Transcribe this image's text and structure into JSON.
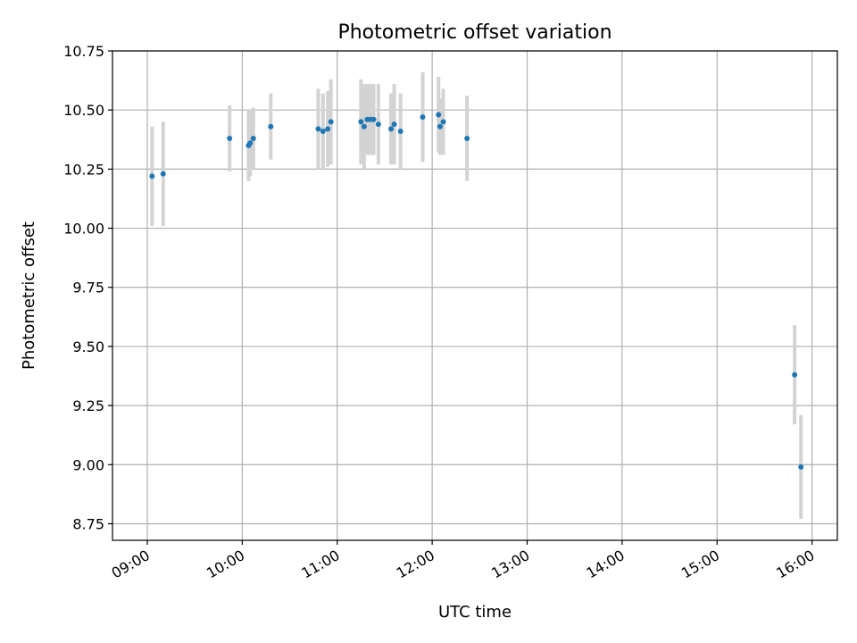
{
  "chart_data": {
    "type": "scatter",
    "title": "Photometric offset variation",
    "xlabel": "UTC time",
    "ylabel": "Photometric offset",
    "xlim": [
      "08:38",
      "16:16"
    ],
    "ylim": [
      8.68,
      10.75
    ],
    "grid": true,
    "x_ticks": [
      "09:00",
      "10:00",
      "11:00",
      "12:00",
      "13:00",
      "14:00",
      "15:00",
      "16:00"
    ],
    "y_ticks": [
      "8.75",
      "9.00",
      "9.25",
      "9.50",
      "9.75",
      "10.00",
      "10.25",
      "10.50",
      "10.75"
    ],
    "colors": {
      "point": "#1f77b4",
      "errorbar": "#d3d3d3",
      "grid": "#b0b0b0"
    },
    "series": [
      {
        "points": [
          {
            "t": "09:03",
            "y": 10.22,
            "err": 0.21
          },
          {
            "t": "09:10",
            "y": 10.23,
            "err": 0.22
          },
          {
            "t": "09:52",
            "y": 10.38,
            "err": 0.14
          },
          {
            "t": "10:04",
            "y": 10.35,
            "err": 0.15
          },
          {
            "t": "10:05",
            "y": 10.36,
            "err": 0.14
          },
          {
            "t": "10:07",
            "y": 10.38,
            "err": 0.13
          },
          {
            "t": "10:18",
            "y": 10.43,
            "err": 0.14
          },
          {
            "t": "10:48",
            "y": 10.42,
            "err": 0.17
          },
          {
            "t": "10:51",
            "y": 10.41,
            "err": 0.16
          },
          {
            "t": "10:54",
            "y": 10.42,
            "err": 0.16
          },
          {
            "t": "10:56",
            "y": 10.45,
            "err": 0.18
          },
          {
            "t": "11:15",
            "y": 10.45,
            "err": 0.18
          },
          {
            "t": "11:17",
            "y": 10.43,
            "err": 0.18
          },
          {
            "t": "11:19",
            "y": 10.46,
            "err": 0.15
          },
          {
            "t": "11:21",
            "y": 10.46,
            "err": 0.15
          },
          {
            "t": "11:23",
            "y": 10.46,
            "err": 0.15
          },
          {
            "t": "11:26",
            "y": 10.44,
            "err": 0.17
          },
          {
            "t": "11:34",
            "y": 10.42,
            "err": 0.15
          },
          {
            "t": "11:36",
            "y": 10.44,
            "err": 0.17
          },
          {
            "t": "11:40",
            "y": 10.41,
            "err": 0.16
          },
          {
            "t": "11:54",
            "y": 10.47,
            "err": 0.19
          },
          {
            "t": "12:04",
            "y": 10.48,
            "err": 0.16
          },
          {
            "t": "12:05",
            "y": 10.43,
            "err": 0.12
          },
          {
            "t": "12:07",
            "y": 10.45,
            "err": 0.14
          },
          {
            "t": "12:22",
            "y": 10.38,
            "err": 0.18
          },
          {
            "t": "15:49",
            "y": 9.38,
            "err": 0.21
          },
          {
            "t": "15:53",
            "y": 8.99,
            "err": 0.22
          }
        ]
      }
    ]
  }
}
